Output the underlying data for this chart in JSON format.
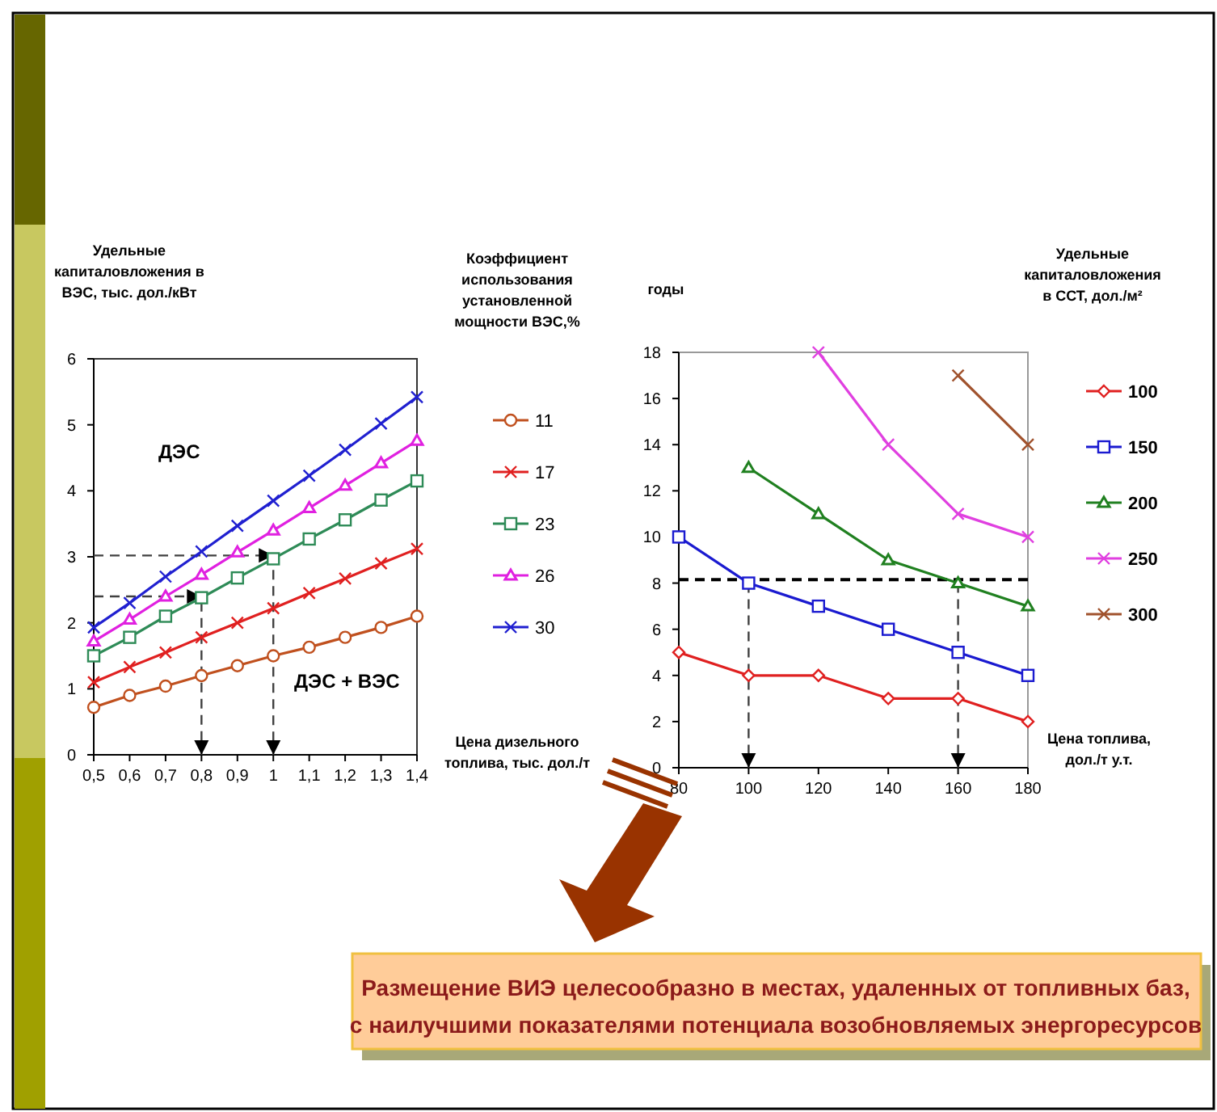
{
  "chart_data": [
    {
      "type": "line",
      "ylabel": "Удельные капиталовложения в ВЭС, тыс. дол./кВт",
      "xlabel": "Цена дизельного топлива, тыс. дол./т",
      "legend_title": "Коэффициент использования установленной мощности ВЭС,%",
      "legend": "right",
      "grid": false,
      "x": [
        0.5,
        0.6,
        0.7,
        0.8,
        0.9,
        1,
        1.1,
        1.2,
        1.3,
        1.4
      ],
      "xlim": [
        0.5,
        1.4
      ],
      "xticks": [
        {
          "value": 0.5,
          "label": "0,5"
        },
        {
          "value": 0.6,
          "label": "0,6"
        },
        {
          "value": 0.7,
          "label": "0,7"
        },
        {
          "value": 0.8,
          "label": "0,8"
        },
        {
          "value": 0.9,
          "label": "0,9"
        },
        1,
        {
          "value": 1.1,
          "label": "1,1"
        },
        {
          "value": 1.2,
          "label": "1,2"
        },
        {
          "value": 1.3,
          "label": "1,3"
        },
        {
          "value": 1.4,
          "label": "1,4"
        }
      ],
      "ylim": [
        0,
        6
      ],
      "yticks": [
        0,
        1,
        2,
        3,
        4,
        5,
        6
      ],
      "annotations": [
        "ДЭС",
        "ДЭС + ВЭС"
      ],
      "series": [
        {
          "name": "11",
          "color": "#c0501e",
          "marker": "circle",
          "values": [
            0.72,
            0.9,
            1.04,
            1.2,
            1.35,
            1.5,
            1.63,
            1.78,
            1.93,
            2.1
          ]
        },
        {
          "name": "17",
          "color": "#e02020",
          "marker": "cross",
          "values": [
            1.1,
            1.33,
            1.55,
            1.78,
            2.0,
            2.22,
            2.45,
            2.67,
            2.9,
            3.12
          ]
        },
        {
          "name": "23",
          "color": "#2e8b57",
          "marker": "square",
          "values": [
            1.5,
            1.78,
            2.1,
            2.38,
            2.68,
            2.97,
            3.27,
            3.56,
            3.86,
            4.15
          ]
        },
        {
          "name": "26",
          "color": "#e020e0",
          "marker": "triangle",
          "values": [
            1.72,
            2.05,
            2.4,
            2.73,
            3.07,
            3.4,
            3.74,
            4.08,
            4.42,
            4.76
          ]
        },
        {
          "name": "30",
          "color": "#2020d0",
          "marker": "cross",
          "values": [
            1.93,
            2.3,
            2.7,
            3.08,
            3.47,
            3.85,
            4.23,
            4.62,
            5.02,
            5.42
          ]
        },
        {
          "type": "line",
          "color": "#404040",
          "marker": "none",
          "line_style": "dashed",
          "x": [
            0.5,
            0.8,
            0.8
          ],
          "values": [
            2.4,
            2.4,
            0
          ]
        },
        {
          "type": "line",
          "color": "#404040",
          "marker": "none",
          "line_style": "dashed",
          "x": [
            0.5,
            1,
            1
          ],
          "values": [
            3.02,
            3.02,
            0
          ]
        }
      ]
    },
    {
      "type": "line",
      "ylabel": "годы",
      "xlabel": "Цена топлива, дол./т у.т.",
      "legend_title": "Удельные капиталовложения в ССТ, дол./м²",
      "legend": "right",
      "grid": false,
      "x": [
        80,
        100,
        120,
        140,
        160,
        180
      ],
      "xlim": [
        80,
        180
      ],
      "xticks": [
        80,
        100,
        120,
        140,
        160,
        180
      ],
      "ylim": [
        0,
        18
      ],
      "yticks": [
        0,
        2,
        4,
        6,
        8,
        10,
        12,
        14,
        16,
        18
      ],
      "ref_lines": [
        {
          "axis": "y",
          "value": 8.15,
          "color": "#000000",
          "line_style": "dashed"
        }
      ],
      "series": [
        {
          "name": "100",
          "color": "#e02020",
          "marker": "diamond",
          "values": [
            5,
            4,
            4,
            3,
            3,
            2
          ]
        },
        {
          "name": "150",
          "color": "#1a1ad0",
          "marker": "square",
          "values": [
            10,
            8,
            7,
            6,
            5,
            4
          ]
        },
        {
          "name": "200",
          "color": "#208020",
          "marker": "triangle",
          "values": [
            null,
            13,
            11,
            9,
            8,
            7
          ]
        },
        {
          "name": "250",
          "color": "#e040e0",
          "marker": "cross",
          "values": [
            null,
            null,
            18,
            14,
            11,
            10
          ]
        },
        {
          "name": "300",
          "color": "#a0522d",
          "marker": "cross",
          "values": [
            null,
            null,
            null,
            null,
            17,
            14
          ]
        },
        {
          "type": "line",
          "color": "#404040",
          "marker": "none",
          "line_style": "dashed",
          "x": [
            100,
            100
          ],
          "values": [
            8,
            0
          ]
        },
        {
          "type": "line",
          "color": "#404040",
          "marker": "none",
          "line_style": "dashed",
          "x": [
            160,
            160
          ],
          "values": [
            8,
            0
          ]
        }
      ]
    },
    {
      "type": "other",
      "annotations": [
        "Размещение ВИЭ целесообразно в местах, удаленных от топливных баз,",
        "с наилучшими показателями потенциала возобновляемых энергоресурсов"
      ]
    }
  ]
}
